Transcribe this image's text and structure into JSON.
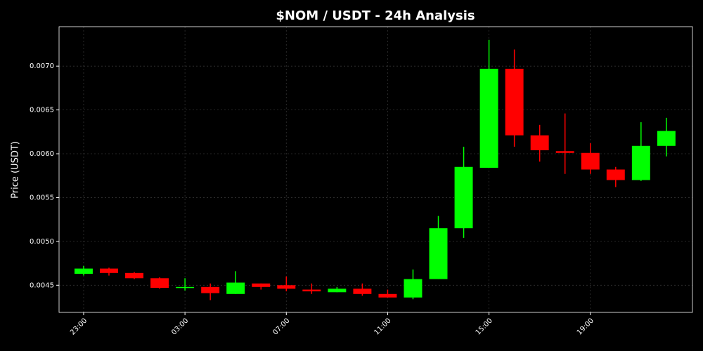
{
  "chart_data": {
    "type": "candlestick",
    "title": "$NOM / USDT - 24h Analysis",
    "y_label": "Price (USDT)",
    "categories": [
      "23:00",
      null,
      null,
      null,
      "03:00",
      null,
      null,
      null,
      "07:00",
      null,
      null,
      null,
      "11:00",
      null,
      null,
      null,
      "15:00",
      null,
      null,
      null,
      "19:00",
      null,
      null,
      null
    ],
    "open": [
      0.00463,
      0.00469,
      0.00464,
      0.00458,
      0.00447,
      0.00448,
      0.0044,
      0.00452,
      0.0045,
      0.00445,
      0.00442,
      0.00446,
      0.0044,
      0.00436,
      0.00457,
      0.00515,
      0.00584,
      0.00697,
      0.00621,
      0.00603,
      0.00601,
      0.00582,
      0.0057,
      0.00609
    ],
    "high": [
      0.00472,
      0.0047,
      0.00465,
      0.00459,
      0.00458,
      0.00452,
      0.00466,
      0.00452,
      0.0046,
      0.00452,
      0.00448,
      0.00452,
      0.00445,
      0.00468,
      0.00529,
      0.00608,
      0.0073,
      0.00719,
      0.00633,
      0.00646,
      0.00612,
      0.00585,
      0.00636,
      0.00641
    ],
    "low": [
      0.00461,
      0.00461,
      0.00457,
      0.00446,
      0.00444,
      0.00433,
      0.0044,
      0.00445,
      0.00443,
      0.0044,
      0.00442,
      0.00438,
      0.00436,
      0.00434,
      0.00457,
      0.00504,
      0.00584,
      0.00608,
      0.00591,
      0.00577,
      0.00577,
      0.00562,
      0.00569,
      0.00597
    ],
    "close": [
      0.00469,
      0.00464,
      0.00458,
      0.00447,
      0.00448,
      0.00441,
      0.00453,
      0.00448,
      0.00446,
      0.00443,
      0.00446,
      0.0044,
      0.00436,
      0.00457,
      0.00515,
      0.00585,
      0.00697,
      0.00621,
      0.00604,
      0.00601,
      0.00582,
      0.0057,
      0.00609,
      0.00626
    ],
    "up_color": "#00ff00",
    "down_color": "#ff0000",
    "ylim": [
      0.00419,
      0.00745
    ],
    "yticks": [
      0.0045,
      {
        "value": 0.005,
        "label": "0.0050"
      },
      0.0055,
      {
        "value": 0.006,
        "label": "0.0060"
      },
      0.0065,
      {
        "value": 0.007,
        "label": "0.0070"
      }
    ],
    "grid": true
  }
}
